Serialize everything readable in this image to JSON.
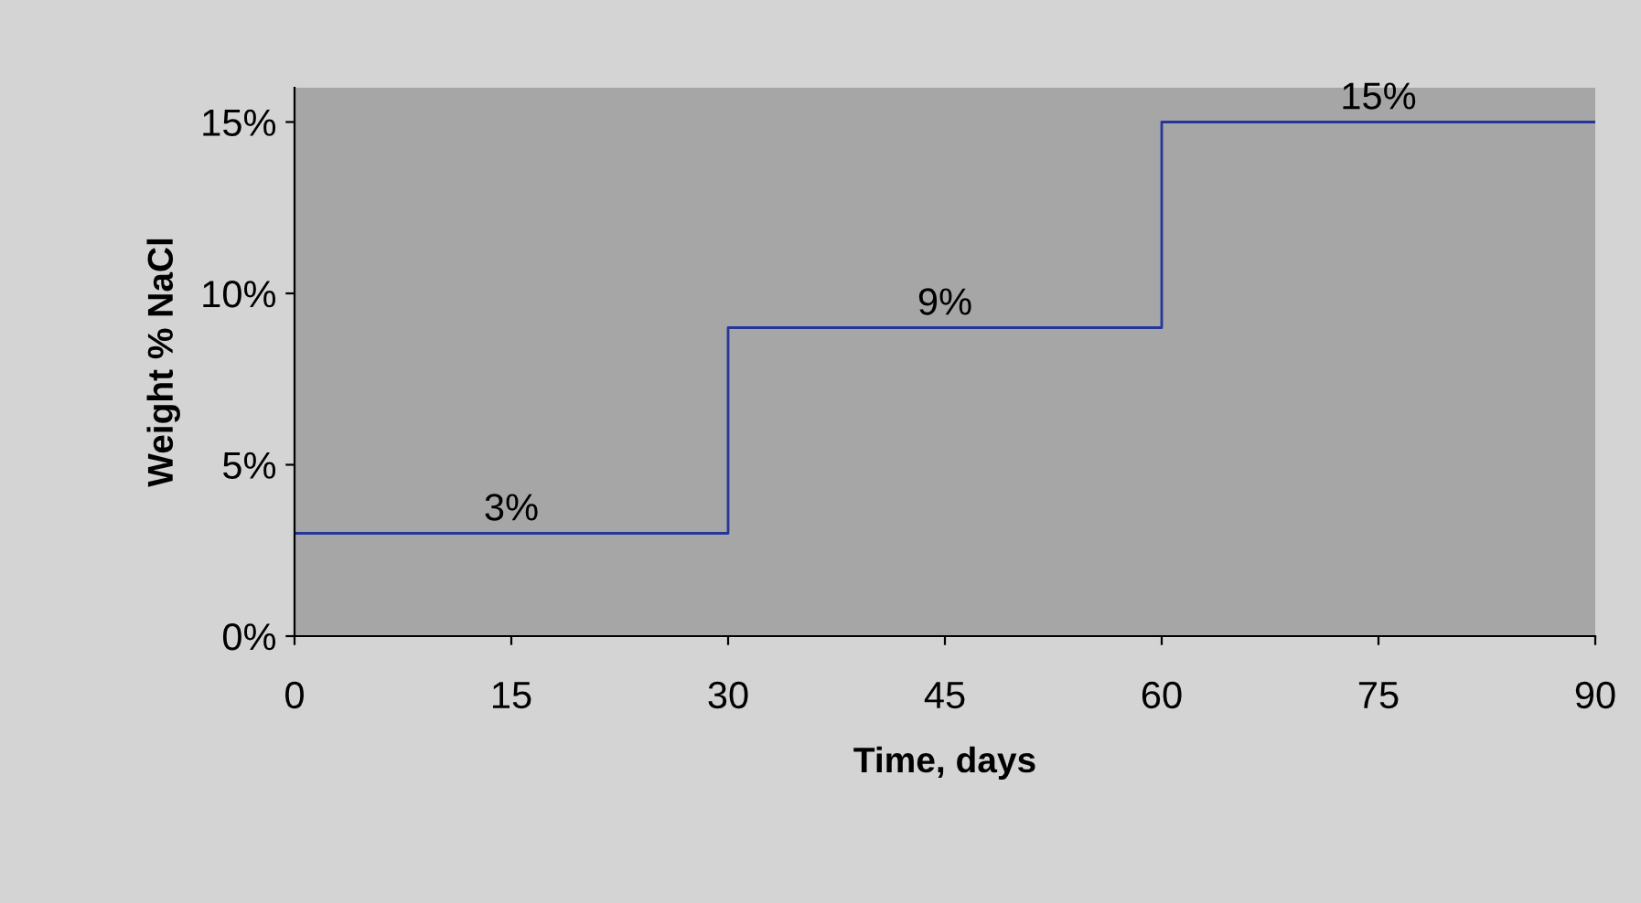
{
  "chart_data": {
    "type": "step",
    "xlabel": "Time, days",
    "ylabel": "Weight % NaCl",
    "x": [
      0,
      30,
      60,
      90
    ],
    "series": [
      {
        "color": "#24369a",
        "values": [
          3,
          9,
          15,
          15
        ]
      }
    ],
    "xlim": [
      0,
      90
    ],
    "xticks": [
      0,
      15,
      30,
      45,
      60,
      75,
      90
    ],
    "ylim": [
      0,
      16
    ],
    "yticks": [
      {
        "value": 0,
        "label": "0%"
      },
      {
        "value": 5,
        "label": "5%"
      },
      {
        "value": 10,
        "label": "10%"
      },
      {
        "value": 15,
        "label": "15%"
      }
    ],
    "annotations": [
      {
        "text": "3%",
        "x": 15,
        "y": 3
      },
      {
        "text": "9%",
        "x": 45,
        "y": 9
      },
      {
        "text": "15%",
        "x": 75,
        "y": 15
      }
    ],
    "grid": false,
    "legend": false,
    "marker": "none",
    "line_style": "solid"
  }
}
